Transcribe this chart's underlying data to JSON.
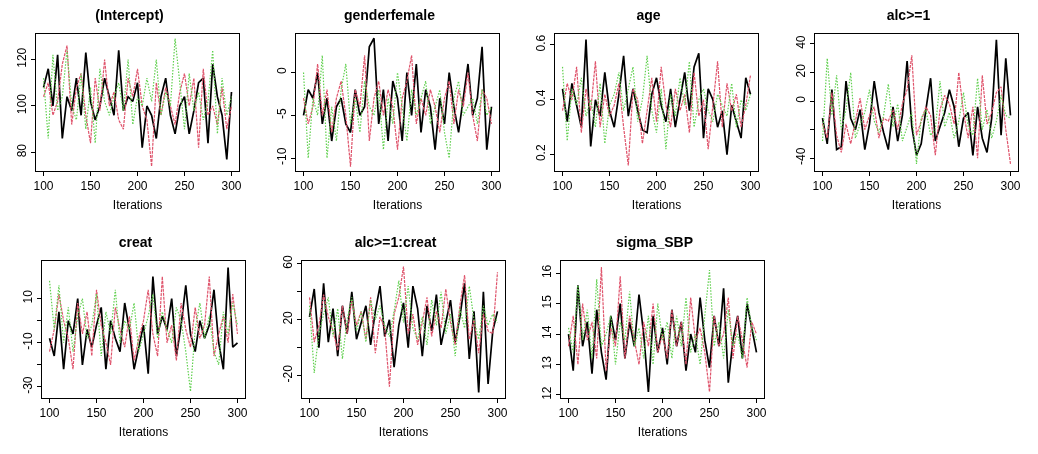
{
  "chart_data": [
    {
      "type": "line",
      "title": "(Intercept)",
      "xlabel": "Iterations",
      "x": [
        100,
        105,
        110,
        115,
        120,
        125,
        130,
        135,
        140,
        145,
        150,
        155,
        160,
        165,
        170,
        175,
        180,
        185,
        190,
        195,
        200,
        205,
        210,
        215,
        220,
        225,
        230,
        235,
        240,
        245,
        250,
        255,
        260,
        265,
        270,
        275,
        280,
        285,
        290,
        295,
        300
      ],
      "xlim": [
        92,
        308
      ],
      "ylim": [
        72,
        131
      ],
      "xticks": [
        100,
        150,
        200,
        250,
        300
      ],
      "yticks": [
        80,
        100,
        120
      ],
      "series": [
        {
          "color": "#000000",
          "line_style": "solid",
          "values": [
            108,
            116,
            100,
            122,
            86,
            104,
            98,
            112,
            96,
            123,
            102,
            94,
            100,
            112,
            104,
            96,
            124,
            98,
            104,
            102,
            110,
            82,
            100,
            96,
            86,
            104,
            112,
            96,
            88,
            100,
            104,
            88,
            98,
            110,
            112,
            84,
            118,
            104,
            96,
            77,
            106
          ]
        },
        {
          "color": "#df536b",
          "line_style": "dashed",
          "values": [
            104,
            110,
            96,
            102,
            118,
            126,
            92,
            108,
            114,
            96,
            84,
            112,
            98,
            120,
            100,
            106,
            94,
            90,
            112,
            104,
            116,
            100,
            94,
            74,
            110,
            96,
            108,
            100,
            92,
            106,
            114,
            100,
            112,
            82,
            116,
            96,
            100,
            92,
            108,
            90,
            100
          ]
        },
        {
          "color": "#61d04f",
          "line_style": "dotted",
          "values": [
            112,
            86,
            122,
            98,
            104,
            124,
            100,
            94,
            114,
            90,
            108,
            84,
            116,
            102,
            96,
            104,
            110,
            98,
            120,
            92,
            104,
            100,
            112,
            102,
            120,
            96,
            106,
            100,
            129,
            110,
            90,
            114,
            98,
            106,
            94,
            102,
            124,
            88,
            112,
            96,
            104
          ]
        }
      ]
    },
    {
      "type": "line",
      "title": "genderfemale",
      "xlabel": "Iterations",
      "x": [
        100,
        105,
        110,
        115,
        120,
        125,
        130,
        135,
        140,
        145,
        150,
        155,
        160,
        165,
        170,
        175,
        180,
        185,
        190,
        195,
        200,
        205,
        210,
        215,
        220,
        225,
        230,
        235,
        240,
        245,
        250,
        255,
        260,
        265,
        270,
        275,
        280,
        285,
        290,
        295,
        300
      ],
      "xlim": [
        92,
        308
      ],
      "ylim": [
        -11.5,
        4.5
      ],
      "xticks": [
        100,
        150,
        200,
        250,
        300
      ],
      "yticks": [
        -10,
        -5,
        0
      ],
      "series": [
        {
          "color": "#000000",
          "line_style": "solid",
          "values": [
            -5,
            -2,
            -3,
            0,
            -6,
            -3,
            -8,
            -4,
            -3,
            -6,
            -7,
            -2,
            -5,
            -4,
            3,
            4,
            -6,
            -2,
            -8,
            -1,
            -3,
            -8,
            0,
            -5,
            1,
            -7,
            -2,
            -4,
            -9,
            -3,
            -6,
            0,
            -4,
            -7,
            -3,
            1,
            -5,
            -3,
            3,
            -9,
            -4
          ]
        },
        {
          "color": "#df536b",
          "line_style": "dashed",
          "values": [
            -3,
            -6,
            -4,
            1,
            -5,
            -2,
            -7,
            -3,
            -1,
            -5,
            -11,
            -2,
            -4,
            2,
            -8,
            -3,
            -1,
            -5,
            -2,
            -4,
            -9,
            -3,
            -1,
            2,
            -6,
            -3,
            -5,
            -2,
            -4,
            -7,
            -3,
            -1,
            -6,
            -2,
            -4,
            0,
            -5,
            -8,
            -2,
            -3,
            -6
          ]
        },
        {
          "color": "#61d04f",
          "line_style": "dotted",
          "values": [
            0,
            -10,
            -3,
            -5,
            2,
            -10,
            -4,
            -8,
            -2,
            1,
            -6,
            -3,
            -7,
            -1,
            -4,
            -5,
            -2,
            -9,
            -3,
            -6,
            0,
            -4,
            -8,
            -2,
            -5,
            -3,
            -1,
            -6,
            -4,
            -2,
            -7,
            -10,
            -3,
            -1,
            -5,
            -4,
            -3,
            -6,
            -2,
            -5,
            -4
          ]
        }
      ]
    },
    {
      "type": "line",
      "title": "age",
      "xlabel": "Iterations",
      "x": [
        100,
        105,
        110,
        115,
        120,
        125,
        130,
        135,
        140,
        145,
        150,
        155,
        160,
        165,
        170,
        175,
        180,
        185,
        190,
        195,
        200,
        205,
        210,
        215,
        220,
        225,
        230,
        235,
        240,
        245,
        250,
        255,
        260,
        265,
        270,
        275,
        280,
        285,
        290,
        295,
        300
      ],
      "xlim": [
        92,
        308
      ],
      "ylim": [
        0.14,
        0.64
      ],
      "xticks": [
        100,
        150,
        200,
        250,
        300
      ],
      "yticks": [
        0.2,
        0.4,
        0.6
      ],
      "series": [
        {
          "color": "#000000",
          "line_style": "solid",
          "values": [
            0.44,
            0.32,
            0.46,
            0.38,
            0.3,
            0.62,
            0.23,
            0.4,
            0.34,
            0.5,
            0.36,
            0.3,
            0.42,
            0.56,
            0.34,
            0.44,
            0.36,
            0.29,
            0.28,
            0.42,
            0.48,
            0.38,
            0.32,
            0.44,
            0.3,
            0.4,
            0.5,
            0.36,
            0.52,
            0.57,
            0.26,
            0.44,
            0.4,
            0.3,
            0.36,
            0.2,
            0.38,
            0.32,
            0.26,
            0.48,
            0.42
          ]
        },
        {
          "color": "#df536b",
          "line_style": "dashed",
          "values": [
            0.36,
            0.46,
            0.4,
            0.52,
            0.28,
            0.44,
            0.36,
            0.54,
            0.3,
            0.42,
            0.34,
            0.38,
            0.46,
            0.3,
            0.16,
            0.44,
            0.4,
            0.24,
            0.36,
            0.48,
            0.32,
            0.52,
            0.38,
            0.3,
            0.44,
            0.36,
            0.42,
            0.28,
            0.5,
            0.34,
            0.4,
            0.22,
            0.38,
            0.54,
            0.3,
            0.46,
            0.36,
            0.42,
            0.3,
            0.38,
            0.49
          ]
        },
        {
          "color": "#61d04f",
          "line_style": "dotted",
          "values": [
            0.52,
            0.25,
            0.44,
            0.38,
            0.48,
            0.34,
            0.4,
            0.3,
            0.46,
            0.24,
            0.38,
            0.42,
            0.5,
            0.36,
            0.44,
            0.52,
            0.32,
            0.4,
            0.56,
            0.36,
            0.28,
            0.44,
            0.22,
            0.42,
            0.34,
            0.48,
            0.38,
            0.54,
            0.3,
            0.4,
            0.44,
            0.36,
            0.32,
            0.42,
            0.38,
            0.34,
            0.46,
            0.3,
            0.4,
            0.36,
            0.42
          ]
        }
      ]
    },
    {
      "type": "line",
      "title": "alc>=1",
      "xlabel": "Iterations",
      "x": [
        100,
        105,
        110,
        115,
        120,
        125,
        130,
        135,
        140,
        145,
        150,
        155,
        160,
        165,
        170,
        175,
        180,
        185,
        190,
        195,
        200,
        205,
        210,
        215,
        220,
        225,
        230,
        235,
        240,
        245,
        250,
        255,
        260,
        265,
        270,
        275,
        280,
        285,
        290,
        295,
        300
      ],
      "xlim": [
        92,
        308
      ],
      "ylim": [
        -49,
        47
      ],
      "xticks": [
        100,
        150,
        200,
        250,
        300
      ],
      "yticks": [
        -40,
        {
          "value": -20,
          "label": null
        },
        0,
        20,
        40
      ],
      "series": [
        {
          "color": "#000000",
          "line_style": "solid",
          "values": [
            -12,
            -30,
            8,
            -34,
            -32,
            14,
            -12,
            -20,
            -6,
            -34,
            -16,
            14,
            -8,
            -22,
            -34,
            -4,
            -28,
            -10,
            28,
            -18,
            -38,
            -30,
            -6,
            16,
            -28,
            -18,
            -8,
            8,
            -4,
            -32,
            -12,
            -8,
            -38,
            -4,
            -26,
            -36,
            -12,
            43,
            -24,
            30,
            -10
          ]
        },
        {
          "color": "#df536b",
          "line_style": "dashed",
          "values": [
            -16,
            -26,
            6,
            -24,
            -36,
            -16,
            -30,
            -14,
            2,
            -20,
            -10,
            -4,
            -26,
            -12,
            -14,
            -6,
            -20,
            -2,
            8,
            32,
            -24,
            -14,
            -4,
            -10,
            -38,
            -6,
            4,
            -2,
            -16,
            20,
            -8,
            -26,
            -4,
            -40,
            18,
            -16,
            -8,
            6,
            10,
            -20,
            -44
          ]
        },
        {
          "color": "#61d04f",
          "line_style": "dotted",
          "values": [
            -28,
            30,
            -10,
            18,
            -20,
            -6,
            20,
            -26,
            -16,
            -8,
            8,
            -14,
            -22,
            -10,
            12,
            -18,
            -2,
            -28,
            -18,
            -8,
            -44,
            -12,
            -6,
            -24,
            -20,
            14,
            -18,
            -8,
            -26,
            -14,
            6,
            -18,
            -24,
            16,
            -20,
            -6,
            -26,
            -14,
            4,
            -10,
            -12
          ]
        }
      ]
    },
    {
      "type": "line",
      "title": "creat",
      "xlabel": "Iterations",
      "x": [
        100,
        105,
        110,
        115,
        120,
        125,
        130,
        135,
        140,
        145,
        150,
        155,
        160,
        165,
        170,
        175,
        180,
        185,
        190,
        195,
        200,
        205,
        210,
        215,
        220,
        225,
        230,
        235,
        240,
        245,
        250,
        255,
        260,
        265,
        270,
        275,
        280,
        285,
        290,
        295,
        300
      ],
      "xlim": [
        92,
        308
      ],
      "ylim": [
        -35,
        27
      ],
      "xticks": [
        100,
        150,
        200,
        250,
        300
      ],
      "yticks": [
        -30,
        {
          "value": -20,
          "label": null
        },
        -10,
        {
          "value": 0,
          "label": null
        },
        10
      ],
      "series": [
        {
          "color": "#000000",
          "line_style": "solid",
          "values": [
            -8,
            -16,
            4,
            -22,
            0,
            -6,
            10,
            -20,
            -4,
            -12,
            -2,
            6,
            -22,
            0,
            -8,
            -14,
            8,
            -4,
            -22,
            -12,
            -2,
            -24,
            20,
            -6,
            2,
            -4,
            10,
            -16,
            -2,
            16,
            -6,
            -14,
            0,
            -8,
            -2,
            14,
            -10,
            -22,
            24,
            -12,
            -10
          ]
        },
        {
          "color": "#df536b",
          "line_style": "dashed",
          "values": [
            -14,
            -4,
            12,
            0,
            -8,
            -22,
            8,
            -6,
            4,
            -16,
            14,
            -2,
            -10,
            -20,
            6,
            -4,
            -12,
            2,
            -18,
            -8,
            0,
            14,
            -6,
            -16,
            20,
            -10,
            -2,
            -18,
            8,
            -4,
            -12,
            6,
            -8,
            -2,
            20,
            -16,
            -6,
            2,
            -10,
            12,
            -6
          ]
        },
        {
          "color": "#61d04f",
          "line_style": "dotted",
          "values": [
            18,
            -4,
            16,
            -10,
            6,
            -14,
            2,
            10,
            -8,
            -2,
            12,
            -16,
            4,
            -6,
            14,
            -10,
            0,
            -4,
            8,
            -14,
            -6,
            2,
            12,
            -8,
            4,
            -4,
            -10,
            6,
            0,
            -14,
            -32,
            -4,
            8,
            -8,
            2,
            -14,
            -20,
            4,
            -6,
            8,
            -2
          ]
        }
      ]
    },
    {
      "type": "line",
      "title": "alc>=1:creat",
      "xlabel": "Iterations",
      "x": [
        100,
        105,
        110,
        115,
        120,
        125,
        130,
        135,
        140,
        145,
        150,
        155,
        160,
        165,
        170,
        175,
        180,
        185,
        190,
        195,
        200,
        205,
        210,
        215,
        220,
        225,
        230,
        235,
        240,
        245,
        250,
        255,
        260,
        265,
        270,
        275,
        280,
        285,
        290,
        295,
        300
      ],
      "xlim": [
        92,
        308
      ],
      "ylim": [
        -36,
        62
      ],
      "xticks": [
        100,
        150,
        200,
        250,
        300
      ],
      "yticks": [
        -20,
        {
          "value": 0,
          "label": null
        },
        20,
        {
          "value": 40,
          "label": null
        },
        60
      ],
      "series": [
        {
          "color": "#000000",
          "line_style": "solid",
          "values": [
            22,
            42,
            0,
            46,
            4,
            28,
            -6,
            30,
            10,
            40,
            6,
            18,
            30,
            2,
            26,
            44,
            8,
            20,
            -14,
            16,
            32,
            0,
            44,
            28,
            -6,
            30,
            12,
            38,
            2,
            18,
            34,
            4,
            22,
            46,
            -8,
            26,
            -32,
            40,
            -26,
            12,
            26
          ]
        },
        {
          "color": "#df536b",
          "line_style": "dashed",
          "values": [
            36,
            4,
            16,
            38,
            22,
            12,
            -2,
            30,
            10,
            34,
            16,
            26,
            6,
            36,
            -4,
            22,
            14,
            -28,
            24,
            36,
            58,
            10,
            24,
            2,
            18,
            36,
            8,
            26,
            14,
            42,
            18,
            2,
            30,
            52,
            6,
            20,
            -4,
            24,
            12,
            10,
            54
          ]
        },
        {
          "color": "#61d04f",
          "line_style": "dotted",
          "values": [
            30,
            -18,
            10,
            24,
            36,
            8,
            28,
            -8,
            20,
            36,
            12,
            26,
            4,
            34,
            20,
            30,
            16,
            8,
            26,
            48,
            18,
            44,
            14,
            6,
            22,
            2,
            34,
            16,
            40,
            10,
            24,
            -6,
            28,
            14,
            44,
            20,
            6,
            30,
            16,
            24,
            18
          ]
        }
      ]
    },
    {
      "type": "line",
      "title": "sigma_SBP",
      "xlabel": "Iterations",
      "x": [
        100,
        105,
        110,
        115,
        120,
        125,
        130,
        135,
        140,
        145,
        150,
        155,
        160,
        165,
        170,
        175,
        180,
        185,
        190,
        195,
        200,
        205,
        210,
        215,
        220,
        225,
        230,
        235,
        240,
        245,
        250,
        255,
        260,
        265,
        270,
        275,
        280,
        285,
        290,
        295,
        300
      ],
      "xlim": [
        92,
        308
      ],
      "ylim": [
        11.9,
        16.4
      ],
      "xticks": [
        100,
        150,
        200,
        250,
        300
      ],
      "yticks": [
        12,
        13,
        14,
        15,
        16
      ],
      "series": [
        {
          "color": "#000000",
          "line_style": "solid",
          "values": [
            14.0,
            12.8,
            15.6,
            13.6,
            14.4,
            12.7,
            14.8,
            13.4,
            12.5,
            14.6,
            13.8,
            15.0,
            13.2,
            14.4,
            13.6,
            15.3,
            14.0,
            12.1,
            14.6,
            13.4,
            14.2,
            13.0,
            14.8,
            13.6,
            14.4,
            12.8,
            14.0,
            13.4,
            15.2,
            13.8,
            12.9,
            14.6,
            13.6,
            15.5,
            12.4,
            13.8,
            14.6,
            13.2,
            15.0,
            14.2,
            13.4
          ]
        },
        {
          "color": "#df536b",
          "line_style": "dashed",
          "values": [
            13.6,
            14.6,
            13.0,
            15.0,
            13.8,
            14.4,
            13.2,
            16.2,
            12.8,
            14.2,
            13.6,
            15.9,
            13.2,
            14.6,
            13.8,
            13.0,
            14.4,
            13.6,
            15.0,
            13.4,
            14.0,
            13.2,
            14.8,
            13.6,
            14.4,
            13.0,
            15.2,
            13.8,
            14.2,
            13.4,
            12.1,
            14.6,
            13.6,
            14.0,
            15.2,
            13.2,
            14.6,
            13.8,
            12.9,
            14.4,
            14.0
          ]
        },
        {
          "color": "#61d04f",
          "line_style": "dotted",
          "values": [
            14.2,
            13.4,
            15.6,
            13.8,
            14.8,
            13.2,
            15.8,
            13.6,
            14.0,
            14.6,
            13.0,
            14.4,
            13.8,
            15.4,
            13.6,
            14.2,
            13.2,
            14.6,
            13.0,
            15.0,
            13.8,
            14.4,
            13.2,
            14.6,
            13.6,
            15.2,
            13.4,
            14.0,
            13.0,
            14.6,
            16.1,
            13.6,
            14.4,
            13.2,
            14.8,
            13.6,
            14.0,
            13.2,
            15.2,
            14.2,
            13.8
          ]
        }
      ]
    }
  ]
}
